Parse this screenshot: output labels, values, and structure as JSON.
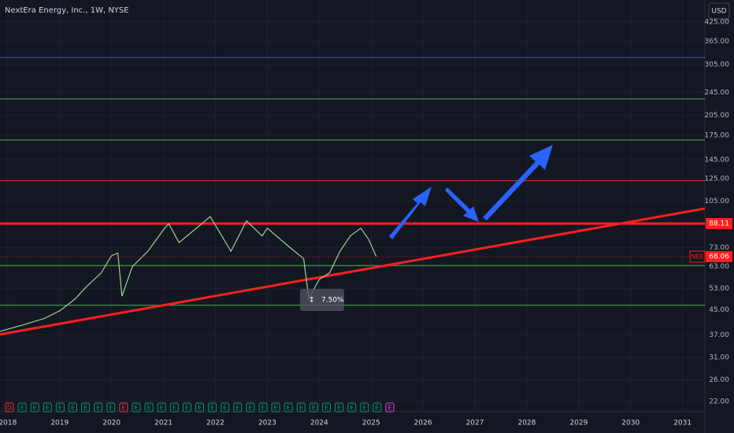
{
  "chart_data": {
    "type": "line",
    "title": "NextEra Energy, Inc., 1W, NYSE",
    "currency": "USD",
    "log_scale": true,
    "grid": true,
    "series": [
      {
        "name": "NEE",
        "color": "#9ccf9a",
        "x": [
          2017.85,
          2018.3,
          2018.7,
          2019.0,
          2019.3,
          2019.5,
          2019.8,
          2020.0,
          2020.12,
          2020.2,
          2020.4,
          2020.7,
          2021.0,
          2021.1,
          2021.3,
          2021.6,
          2021.9,
          2022.0,
          2022.3,
          2022.6,
          2022.9,
          2023.0,
          2023.4,
          2023.7,
          2023.8,
          2024.0,
          2024.2,
          2024.4,
          2024.6,
          2024.8,
          2024.95,
          2025.1
        ],
        "values": [
          38,
          40,
          42,
          44.6,
          49,
          53.5,
          60,
          68.6,
          70,
          50,
          63,
          71,
          84,
          88,
          76,
          84,
          93,
          87,
          71,
          90,
          80,
          85,
          74,
          67,
          49,
          57,
          60,
          71,
          80,
          85,
          78,
          68
        ]
      }
    ],
    "levels": [
      {
        "value": 322,
        "color": "#3f51b5",
        "width": 1
      },
      {
        "value": 233,
        "color": "#4caf50",
        "width": 1
      },
      {
        "value": 169,
        "color": "#4caf50",
        "width": 1
      },
      {
        "value": 123,
        "color": "#e53935",
        "width": 1
      },
      {
        "value": 88.11,
        "color": "#ff1f1f",
        "width": 3
      },
      {
        "value": 63.5,
        "color": "#4caf50",
        "width": 1
      },
      {
        "value": 46.6,
        "color": "#4caf50",
        "width": 1
      }
    ],
    "trendline": {
      "x": [
        2017.85,
        2031.43
      ],
      "values": [
        37.1,
        99.1
      ],
      "color": "#ff1f1f"
    },
    "current_price": {
      "symbol": "NEE",
      "value": 68.06,
      "color": "#ff1f1f"
    },
    "annotation": "7.50%",
    "events": [
      "D",
      "E",
      "E",
      "E",
      "E",
      "E",
      "E",
      "E",
      "E",
      "E",
      "E",
      "E",
      "E",
      "E",
      "E",
      "E",
      "E",
      "E",
      "E",
      "E",
      "E",
      "E",
      "E",
      "E",
      "E",
      "E",
      "E",
      "E",
      "E",
      "E",
      "E"
    ],
    "xlim": [
      2017.85,
      2031.43
    ],
    "xticks": [
      2018,
      2019,
      2020,
      2021,
      2022,
      2023,
      2024,
      2025,
      2026,
      2027,
      2028,
      2029,
      2030,
      2031
    ],
    "ylim": [
      20.3,
      504
    ],
    "yticks": [
      {
        "value": 22,
        "label": "22.00"
      },
      {
        "value": 26,
        "label": "26.00"
      },
      {
        "value": 31,
        "label": "31.00"
      },
      {
        "value": 37,
        "label": "37.00"
      },
      {
        "value": 45,
        "label": "45.00"
      },
      {
        "value": 53,
        "label": "53.00"
      },
      {
        "value": 63,
        "label": "63.00"
      },
      {
        "value": 73,
        "label": "73.00"
      },
      {
        "value": 105,
        "label": "105.00"
      },
      {
        "value": 125,
        "label": "125.00"
      },
      {
        "value": 145,
        "label": "145.00"
      },
      {
        "value": 175,
        "label": "175.00"
      },
      {
        "value": 205,
        "label": "205.00"
      },
      {
        "value": 245,
        "label": "245.00"
      },
      {
        "value": 305,
        "label": "305.00"
      },
      {
        "value": 365,
        "label": "365.00"
      },
      {
        "value": 425,
        "label": "425.00"
      }
    ]
  }
}
